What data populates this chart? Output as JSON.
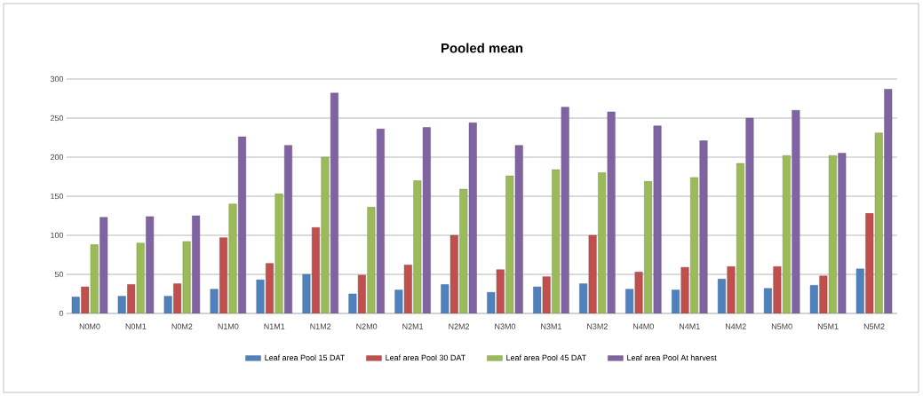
{
  "chart_data": {
    "type": "bar",
    "title": "Pooled mean",
    "categories": [
      "N0M0",
      "N0M1",
      "N0M2",
      "N1M0",
      "N1M1",
      "N1M2",
      "N2M0",
      "N2M1",
      "N2M2",
      "N3M0",
      "N3M1",
      "N3M2",
      "N4M0",
      "N4M1",
      "N4M2",
      "N5M0",
      "N5M1",
      "N5M2"
    ],
    "series": [
      {
        "name": "Leaf area Pool 15 DAT",
        "color": "#4f81bd",
        "values": [
          21,
          22,
          22,
          31,
          43,
          50,
          25,
          30,
          37,
          27,
          34,
          38,
          31,
          30,
          44,
          32,
          36,
          57
        ]
      },
      {
        "name": "Leaf area Pool 30 DAT",
        "color": "#c0504d",
        "values": [
          34,
          37,
          38,
          97,
          64,
          110,
          49,
          62,
          100,
          56,
          47,
          100,
          53,
          59,
          60,
          60,
          48,
          128
        ]
      },
      {
        "name": "Leaf area Pool 45 DAT",
        "color": "#9bbb59",
        "values": [
          88,
          90,
          92,
          140,
          153,
          200,
          136,
          170,
          159,
          176,
          184,
          180,
          169,
          174,
          192,
          202,
          202,
          231
        ]
      },
      {
        "name": "Leaf area Pool At harvest",
        "color": "#8064a2",
        "values": [
          123,
          124,
          125,
          226,
          215,
          282,
          236,
          238,
          244,
          215,
          264,
          258,
          240,
          221,
          250,
          260,
          205,
          287
        ]
      }
    ],
    "ylim": [
      0,
      300
    ],
    "yticks": [
      0,
      50,
      100,
      150,
      200,
      250,
      300
    ],
    "grid": "y",
    "legend": "bottom"
  }
}
